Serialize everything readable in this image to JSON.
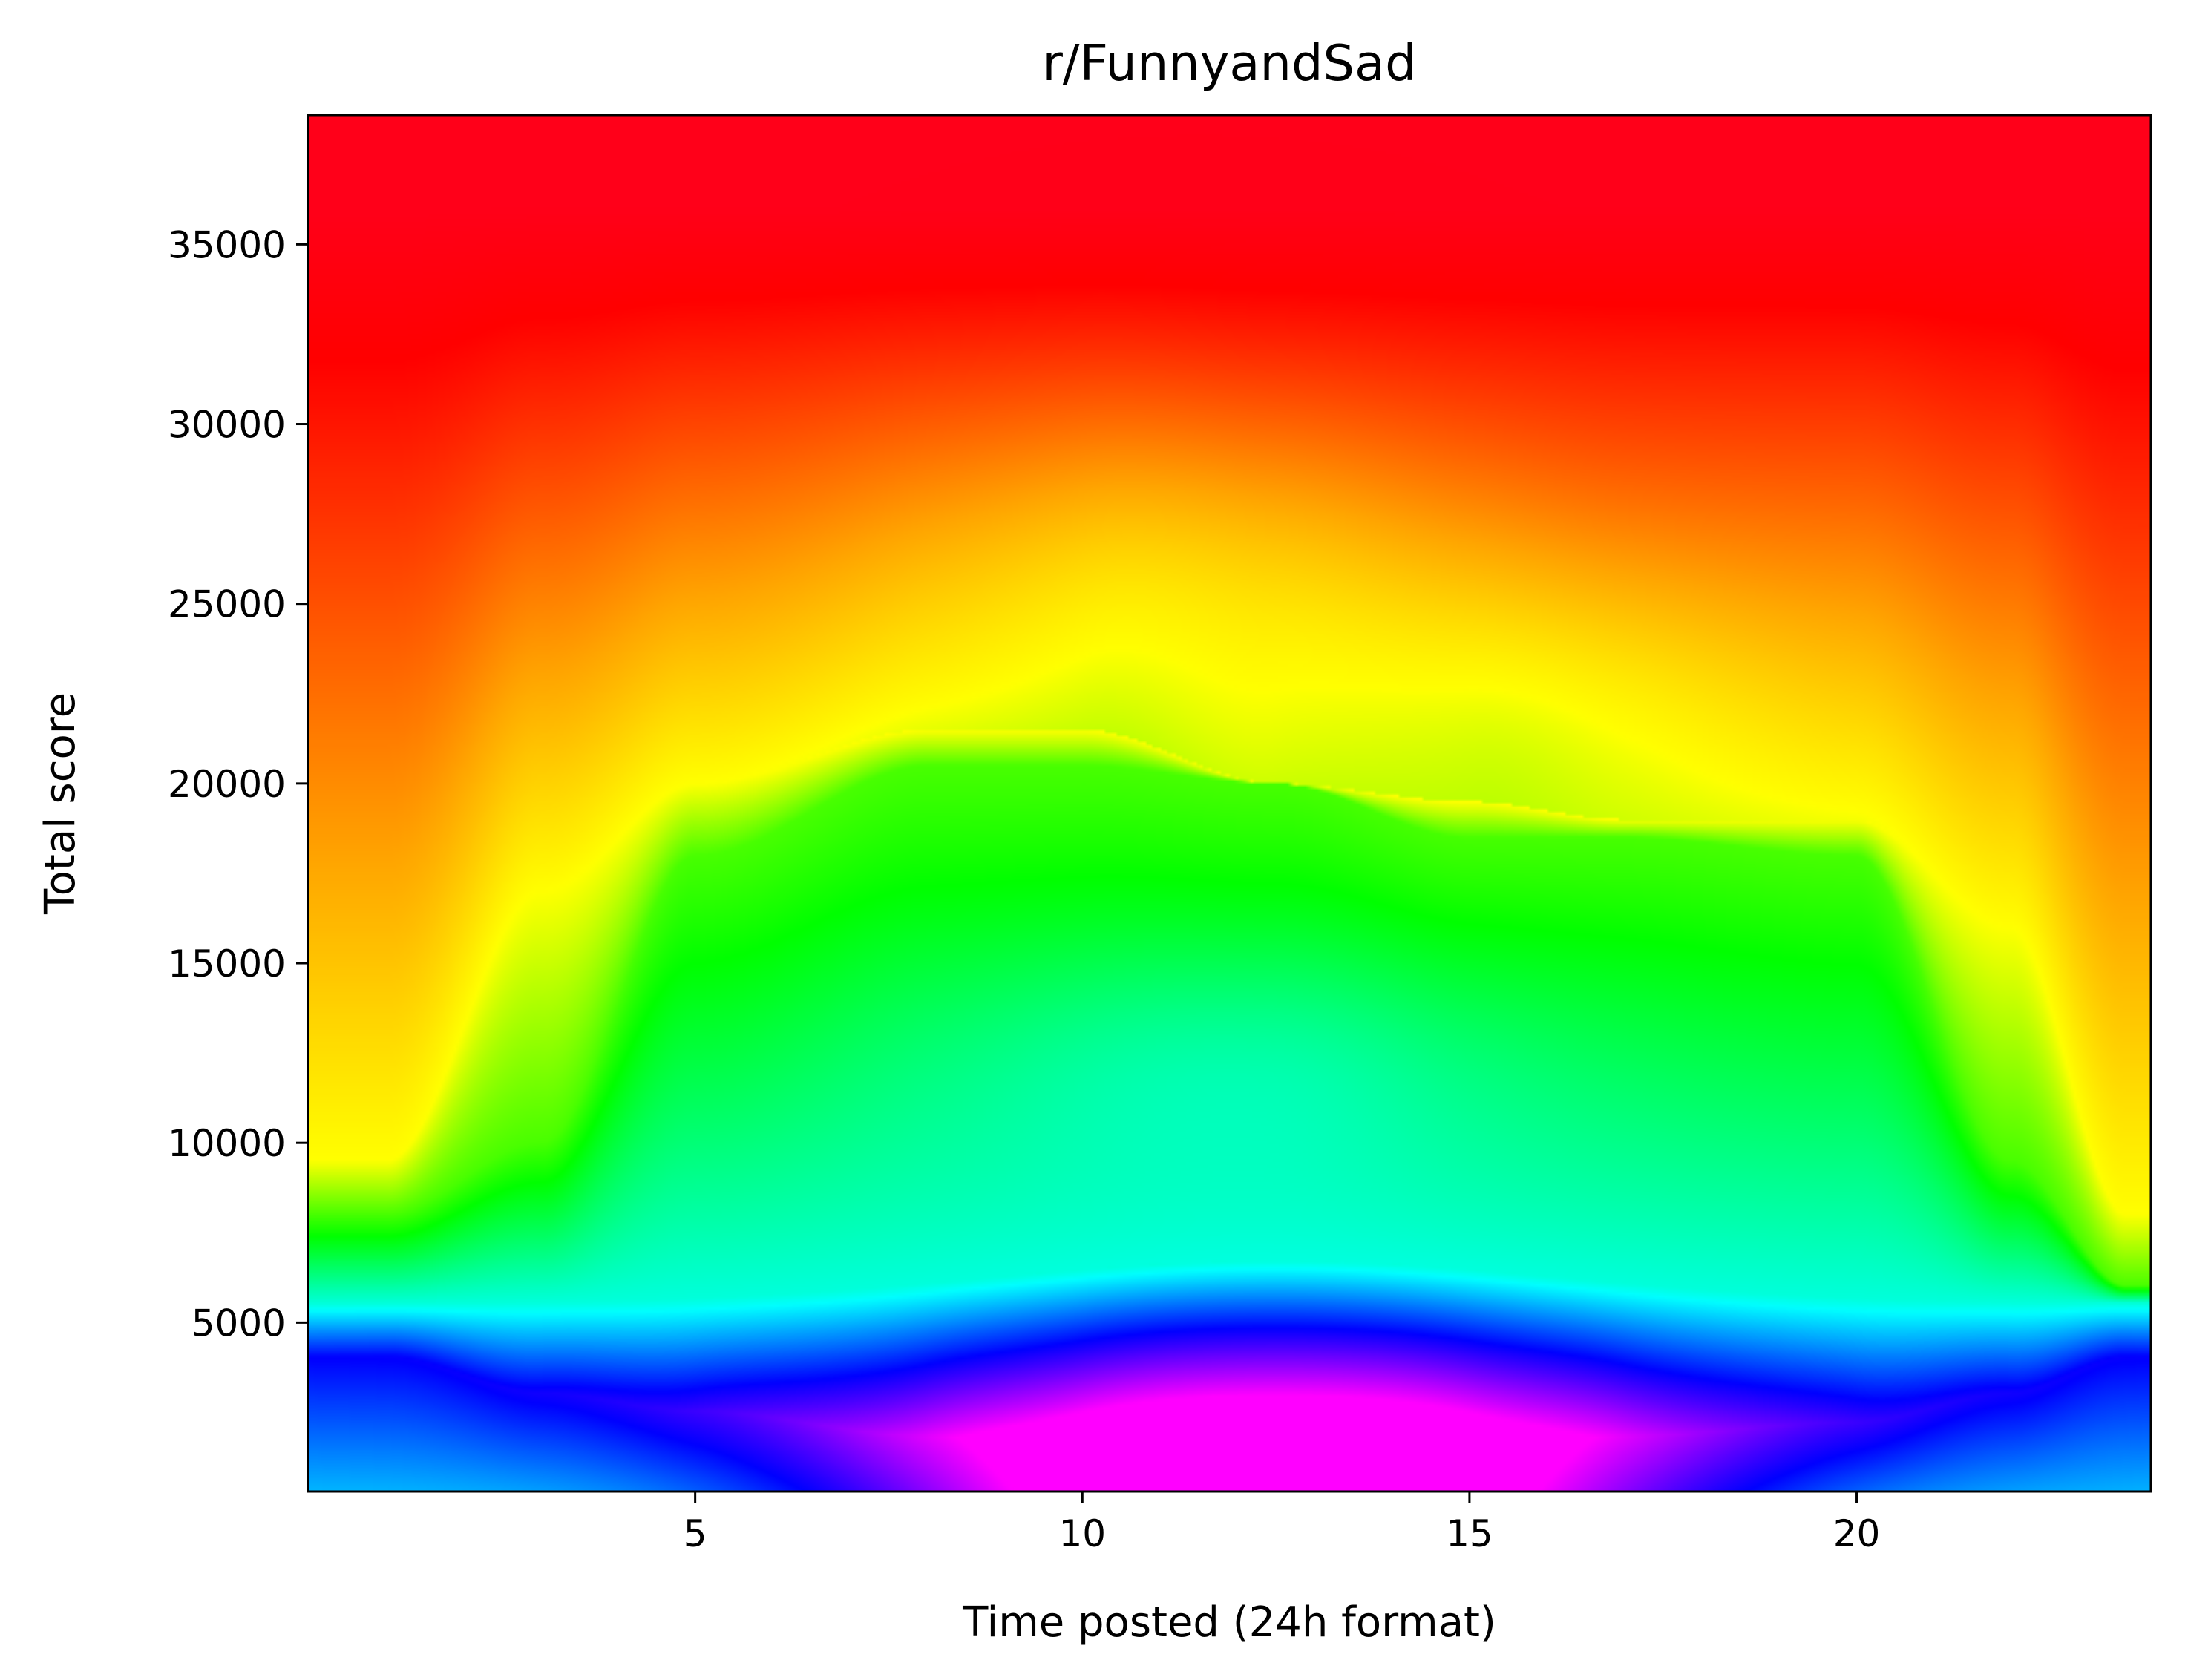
{
  "chart_data": {
    "type": "heatmap",
    "title": "r/FunnyandSad",
    "xlabel": "Time posted (24h format)",
    "ylabel": "Total score",
    "xlim": [
      0,
      23.8
    ],
    "ylim": [
      300,
      38600
    ],
    "xticks": [
      5,
      10,
      15,
      20
    ],
    "yticks": [
      5000,
      10000,
      15000,
      20000,
      25000,
      30000,
      35000
    ],
    "grid": false,
    "colormap": "gist_rainbow",
    "colormap_colors": [
      "#ff0029",
      "#ff0000",
      "#ffff00",
      "#00ff00",
      "#00ffff",
      "#0000ff",
      "#ff00ff"
    ],
    "density_field": {
      "x": [
        1,
        3,
        5,
        8,
        10,
        12.5,
        15,
        17,
        20,
        22,
        23.5
      ],
      "y_peaks": [
        {
          "x": 1,
          "blue_center": 4000,
          "green_top": 8000,
          "yellow_top": 9500
        },
        {
          "x": 3,
          "blue_center": 3000,
          "green_top": 10000,
          "yellow_top": 17000
        },
        {
          "x": 5,
          "blue_center": 2500,
          "green_top": 18000,
          "yellow_top": 20000
        },
        {
          "x": 8,
          "blue_center": 1800,
          "green_top": 20500,
          "yellow_top": 21500
        },
        {
          "x": 10,
          "blue_center": 1500,
          "green_top": 20500,
          "yellow_top": 21500
        },
        {
          "x": 12.5,
          "blue_center": 1300,
          "green_top": 20000,
          "yellow_top": 20000
        },
        {
          "x": 15,
          "blue_center": 1500,
          "green_top": 18500,
          "yellow_top": 19500
        },
        {
          "x": 17,
          "blue_center": 1800,
          "green_top": 18500,
          "yellow_top": 19000
        },
        {
          "x": 20,
          "blue_center": 2200,
          "green_top": 18000,
          "yellow_top": 19000
        },
        {
          "x": 22,
          "blue_center": 3000,
          "green_top": 9500,
          "yellow_top": 16000
        },
        {
          "x": 23.5,
          "blue_center": 4000,
          "green_top": 6000,
          "yellow_top": 8000
        }
      ]
    }
  }
}
